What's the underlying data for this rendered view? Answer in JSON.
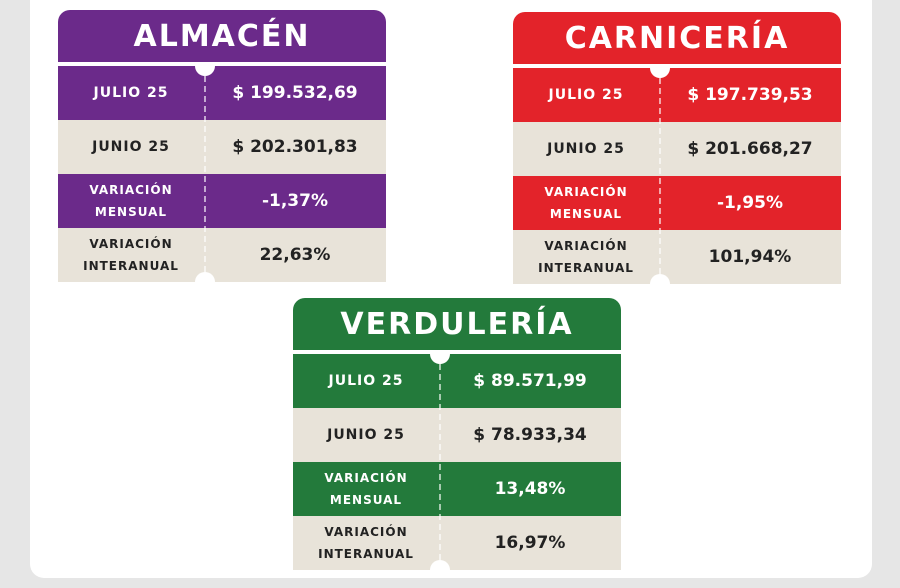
{
  "colors": {
    "almacen": "#6b2a8a",
    "carniceria": "#e3232a",
    "verduleria": "#237a3b"
  },
  "cards": [
    {
      "title": "ALMACÉN",
      "rows": [
        {
          "label": "JULIO 25",
          "value": "$ 199.532,69"
        },
        {
          "label": "JUNIO 25",
          "value": "$ 202.301,83"
        },
        {
          "label": "VARIACIÓN MENSUAL",
          "value": "-1,37%"
        },
        {
          "label": "VARIACIÓN INTERANUAL",
          "value": "22,63%"
        }
      ]
    },
    {
      "title": "CARNICERÍA",
      "rows": [
        {
          "label": "JULIO 25",
          "value": "$ 197.739,53"
        },
        {
          "label": "JUNIO 25",
          "value": "$ 201.668,27"
        },
        {
          "label": "VARIACIÓN MENSUAL",
          "value": "-1,95%"
        },
        {
          "label": "VARIACIÓN INTERANUAL",
          "value": "101,94%"
        }
      ]
    },
    {
      "title": "VERDULERÍA",
      "rows": [
        {
          "label": "JULIO 25",
          "value": "$ 89.571,99"
        },
        {
          "label": "JUNIO 25",
          "value": "$ 78.933,34"
        },
        {
          "label": "VARIACIÓN MENSUAL",
          "value": "13,48%"
        },
        {
          "label": "VARIACIÓN INTERANUAL",
          "value": "16,97%"
        }
      ]
    }
  ]
}
